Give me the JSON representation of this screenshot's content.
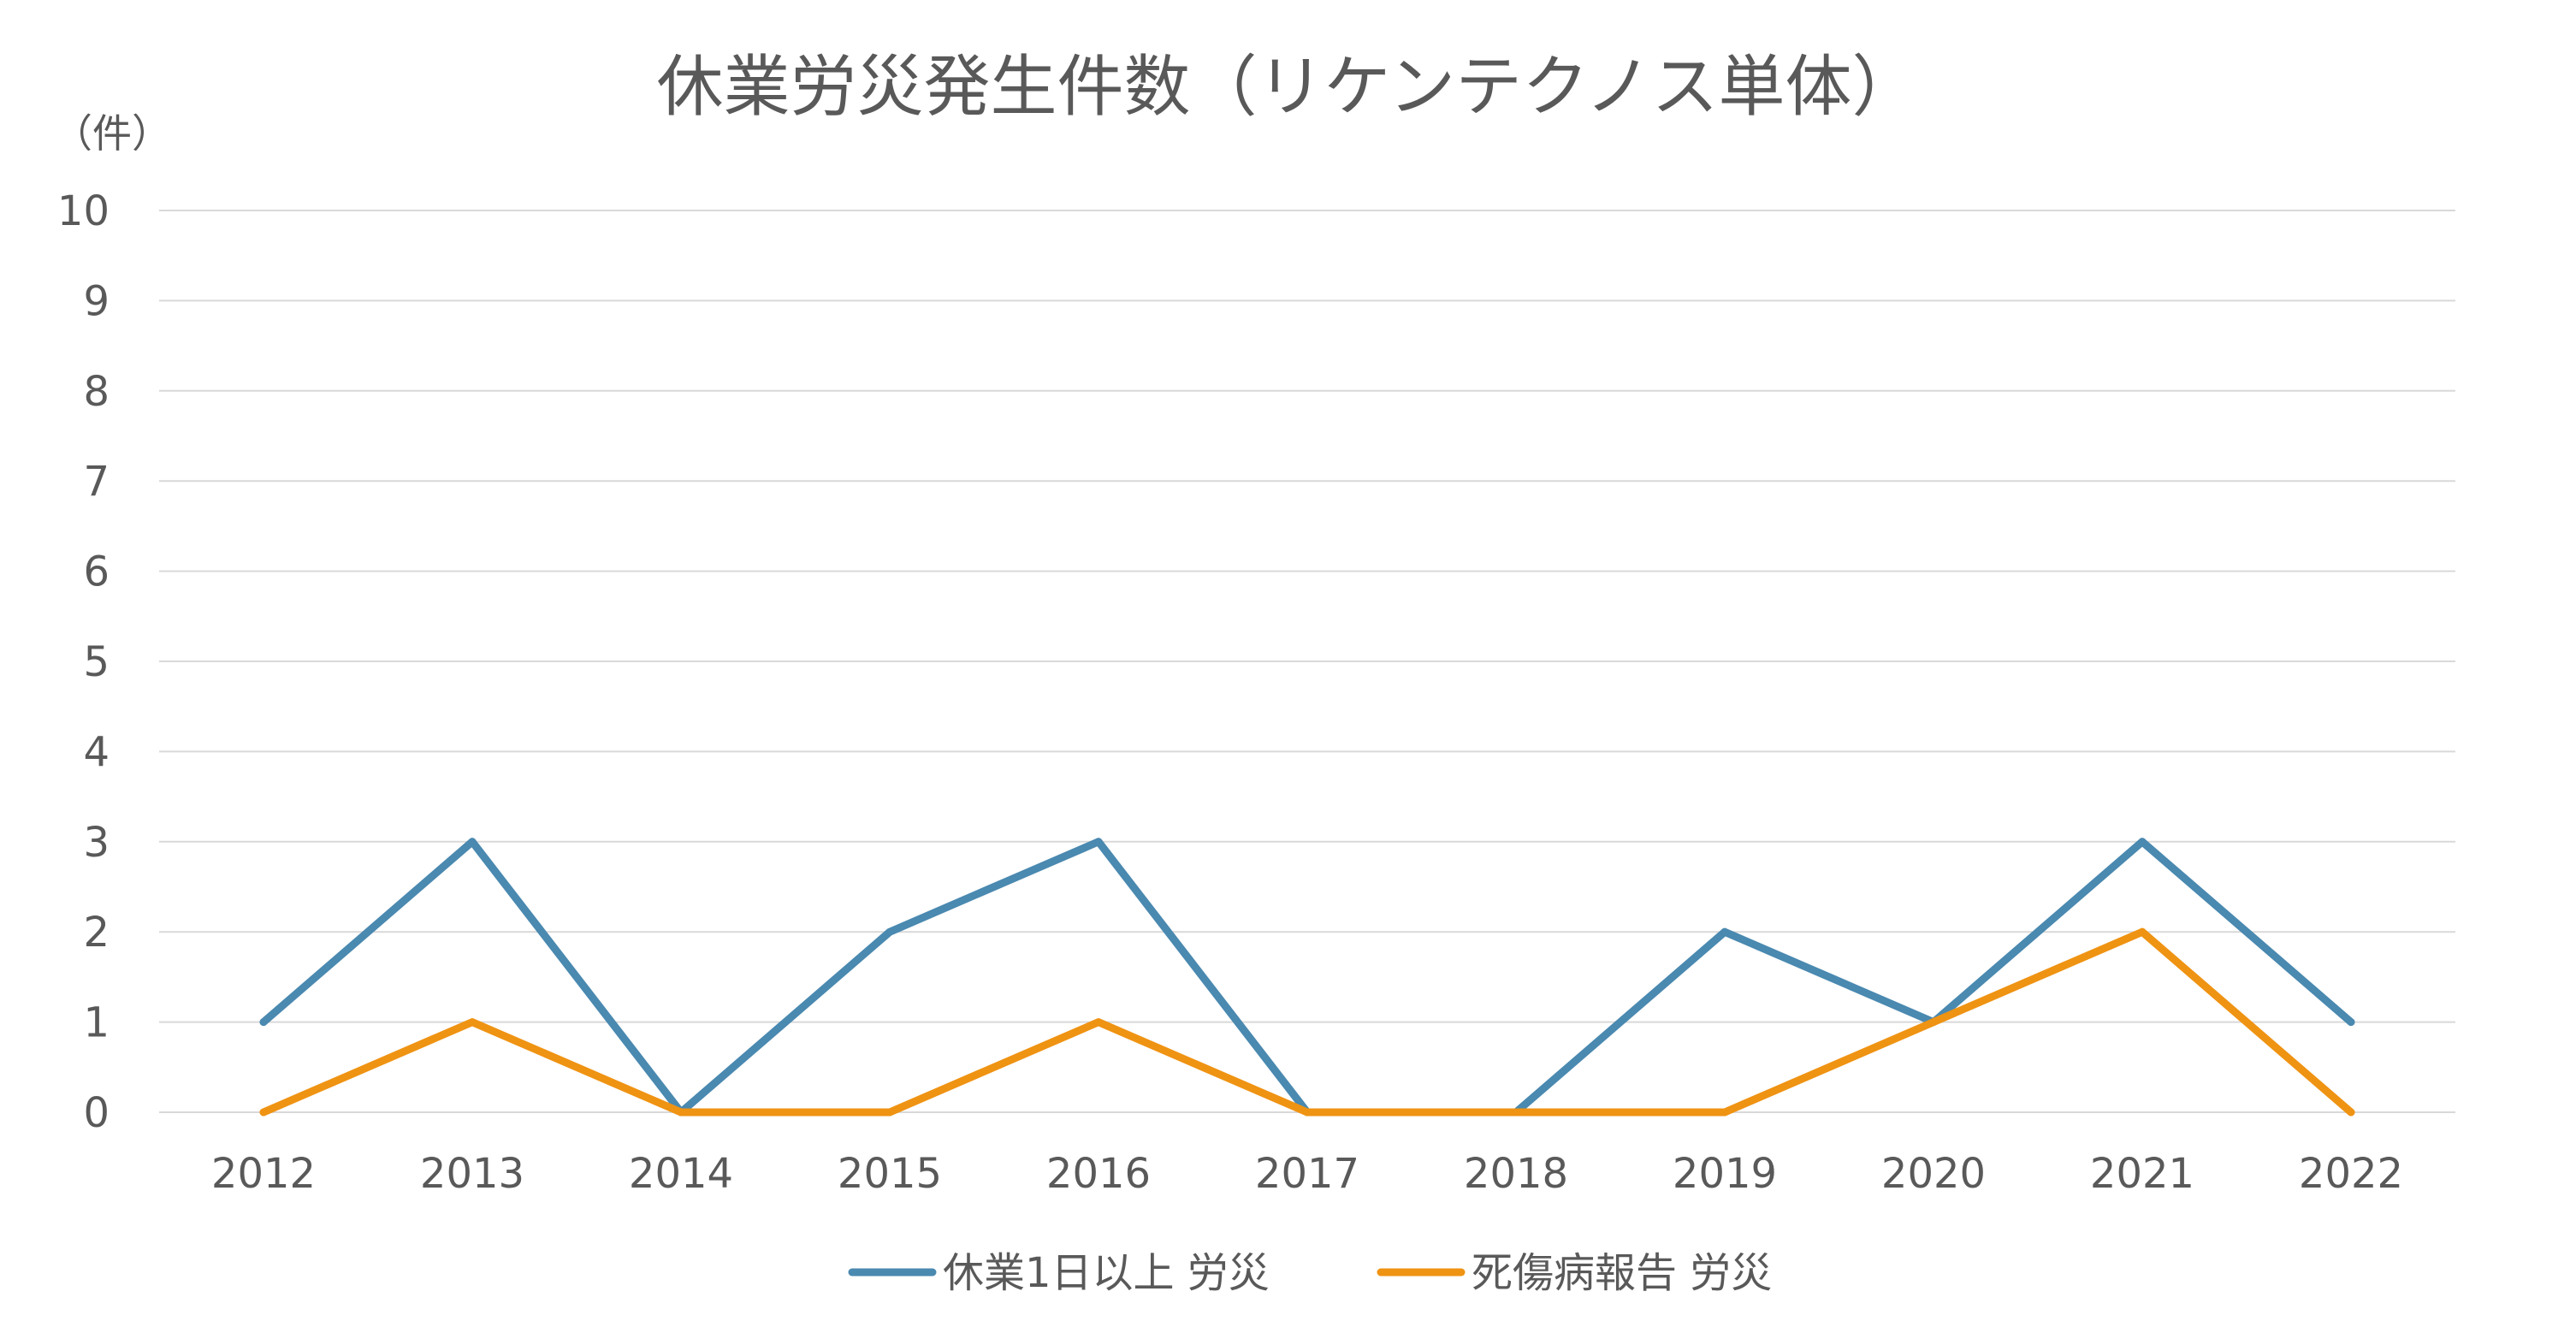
{
  "chart_data": {
    "type": "line",
    "title": "休業労災発生件数（リケンテクノス単体）",
    "ylabel": "（件）",
    "xlabel": "",
    "categories": [
      "2012",
      "2013",
      "2014",
      "2015",
      "2016",
      "2017",
      "2018",
      "2019",
      "2020",
      "2021",
      "2022"
    ],
    "ylim": [
      0,
      10
    ],
    "yticks": [
      "0",
      "1",
      "2",
      "3",
      "4",
      "5",
      "6",
      "7",
      "8",
      "9",
      "10"
    ],
    "grid": true,
    "legend_position": "bottom",
    "series": [
      {
        "name": "休業1日以上 労災",
        "color": "#4a89b0",
        "values": [
          1,
          3,
          0,
          2,
          3,
          0,
          0,
          2,
          1,
          3,
          1
        ]
      },
      {
        "name": "死傷病報告 労災",
        "color": "#ef9313",
        "values": [
          0,
          1,
          0,
          0,
          1,
          0,
          0,
          0,
          1,
          2,
          0
        ]
      }
    ]
  }
}
